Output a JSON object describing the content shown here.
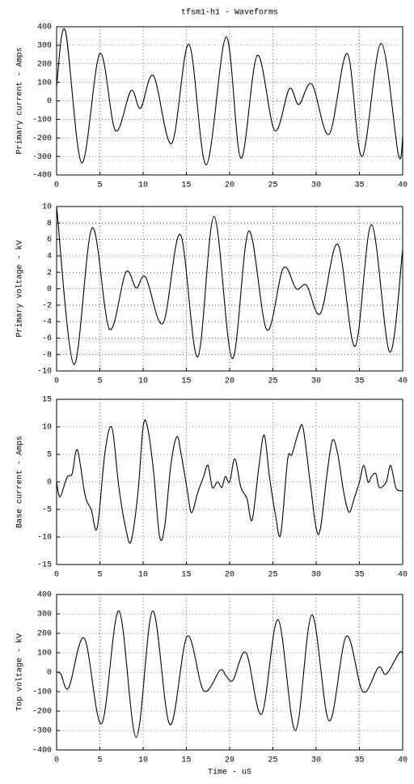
{
  "title": "tfsm1-h1 - Waveforms",
  "chart_data": [
    {
      "type": "line",
      "ylabel": "Primary current - Amps",
      "color": "#000000",
      "grid": true,
      "xlim": [
        0,
        40
      ],
      "xticks": [
        0,
        5,
        10,
        15,
        20,
        25,
        30,
        35,
        40
      ],
      "ylim": [
        -400,
        400
      ],
      "yticks": [
        -400,
        -300,
        -200,
        -100,
        0,
        100,
        200,
        300,
        400
      ],
      "x": [
        0,
        1.0,
        2.9,
        5.0,
        6.8,
        8.6,
        9.7,
        11.2,
        13.3,
        15.3,
        17.3,
        19.6,
        21.3,
        23.2,
        25.2,
        26.9,
        28.0,
        29.5,
        31.5,
        33.6,
        35.3,
        37.5,
        39.5,
        40
      ],
      "values": [
        80,
        380,
        -335,
        255,
        -160,
        55,
        -40,
        135,
        -230,
        305,
        -345,
        345,
        -310,
        245,
        -160,
        65,
        -20,
        90,
        -180,
        255,
        -300,
        310,
        -290,
        -190
      ]
    },
    {
      "type": "line",
      "ylabel": "Primary voltage - kV",
      "color": "#000000",
      "grid": true,
      "xlim": [
        0,
        40
      ],
      "xticks": [
        0,
        5,
        10,
        15,
        20,
        25,
        30,
        35,
        40
      ],
      "ylim": [
        -10,
        10
      ],
      "yticks": [
        -10,
        -8,
        -6,
        -4,
        -2,
        0,
        2,
        4,
        6,
        8,
        10
      ],
      "x": [
        0,
        2.0,
        4.1,
        6.1,
        8.0,
        9.2,
        10.3,
        12.3,
        14.3,
        16.3,
        18.2,
        20.3,
        22.2,
        24.3,
        26.2,
        27.7,
        28.9,
        30.5,
        32.5,
        34.5,
        36.4,
        38.5,
        40
      ],
      "values": [
        10,
        -9.2,
        7.4,
        -4.9,
        2.0,
        0.1,
        1.4,
        -4.2,
        6.6,
        -8.3,
        8.8,
        -8.5,
        7.0,
        -5.0,
        2.5,
        0.0,
        0.4,
        -3.0,
        5.4,
        -7.0,
        7.8,
        -7.7,
        4.8
      ]
    },
    {
      "type": "line",
      "ylabel": "Base current - Amps",
      "color": "#000000",
      "grid": true,
      "xlim": [
        0,
        40
      ],
      "xticks": [
        0,
        5,
        10,
        15,
        20,
        25,
        30,
        35,
        40
      ],
      "ylim": [
        -15,
        15
      ],
      "yticks": [
        -15,
        -10,
        -5,
        0,
        5,
        10,
        15
      ],
      "x": [
        0,
        0.4,
        1.2,
        1.8,
        2.4,
        3.3,
        4.0,
        4.7,
        5.6,
        6.4,
        7.2,
        8.0,
        8.6,
        9.4,
        10.0,
        10.5,
        11.2,
        11.9,
        12.5,
        13.2,
        13.9,
        14.4,
        15.1,
        15.6,
        16.3,
        17.0,
        17.5,
        18.0,
        18.6,
        19.1,
        19.5,
        20.0,
        20.6,
        21.3,
        22.0,
        22.6,
        23.4,
        24.0,
        24.6,
        25.3,
        25.9,
        26.7,
        27.2,
        28.0,
        28.5,
        29.3,
        30.0,
        30.5,
        31.3,
        31.9,
        32.5,
        33.2,
        33.8,
        34.4,
        35.0,
        35.5,
        36.0,
        36.4,
        36.9,
        37.3,
        38.1,
        38.6,
        39.2,
        39.7,
        40
      ],
      "values": [
        0,
        -2.7,
        0.8,
        1.5,
        5.8,
        -2.5,
        -5,
        -8.3,
        5.5,
        9.8,
        -1,
        -8.5,
        -10.8,
        -2,
        10,
        10,
        2,
        -9.9,
        -8,
        3,
        8.2,
        5,
        -1.5,
        -5.6,
        -2,
        1,
        3,
        -1,
        0,
        -1,
        1,
        0,
        4.2,
        -1,
        -3,
        -6.9,
        3,
        8.5,
        1,
        -6,
        -9.5,
        4,
        5,
        9.2,
        9.7,
        0,
        -8.4,
        -8.4,
        2,
        7.6,
        5,
        -2,
        -5.5,
        -3,
        0,
        3,
        0,
        1,
        1.5,
        -1,
        0,
        3,
        -1,
        -1.6,
        -1.6
      ]
    },
    {
      "type": "line",
      "ylabel": "Top voltage - kV",
      "xlabel": "Time - uS",
      "color": "#000000",
      "grid": true,
      "xlim": [
        0,
        40
      ],
      "xticks": [
        0,
        5,
        10,
        15,
        20,
        25,
        30,
        35,
        40
      ],
      "ylim": [
        -400,
        400
      ],
      "yticks": [
        -400,
        -300,
        -200,
        -100,
        0,
        100,
        200,
        300,
        400
      ],
      "x": [
        0,
        0.5,
        1.4,
        3.2,
        5.2,
        7.2,
        9.2,
        11.1,
        13.1,
        15.1,
        17.0,
        18.9,
        19.6,
        20.4,
        21.9,
        23.7,
        25.6,
        27.6,
        29.5,
        31.5,
        33.5,
        35.4,
        37.2,
        38.1,
        39.6,
        40
      ],
      "values": [
        0,
        -10,
        -80,
        175,
        -265,
        315,
        -335,
        315,
        -270,
        185,
        -95,
        10,
        -20,
        -40,
        100,
        -215,
        270,
        -300,
        295,
        -250,
        185,
        -100,
        25,
        -10,
        100,
        95
      ]
    }
  ]
}
